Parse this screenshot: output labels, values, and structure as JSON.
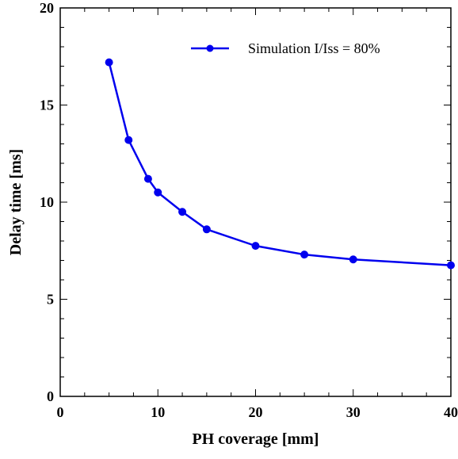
{
  "chart_data": {
    "type": "line",
    "title": "",
    "xlabel": "PH coverage [mm]",
    "ylabel": "Delay time [ms]",
    "xlim": [
      0,
      40
    ],
    "ylim": [
      0,
      20
    ],
    "x_ticks": [
      0,
      10,
      20,
      30,
      40
    ],
    "y_ticks": [
      0,
      5,
      10,
      15,
      20
    ],
    "grid": false,
    "legend_position": "top-right",
    "series": [
      {
        "name": "Simulation I/Iss = 80%",
        "color": "#0000ee",
        "marker": "circle",
        "x": [
          5,
          7,
          9,
          10,
          12.5,
          15,
          20,
          25,
          30,
          40
        ],
        "y": [
          17.2,
          13.2,
          11.2,
          10.5,
          9.5,
          8.6,
          7.75,
          7.3,
          7.05,
          6.75
        ]
      }
    ]
  }
}
